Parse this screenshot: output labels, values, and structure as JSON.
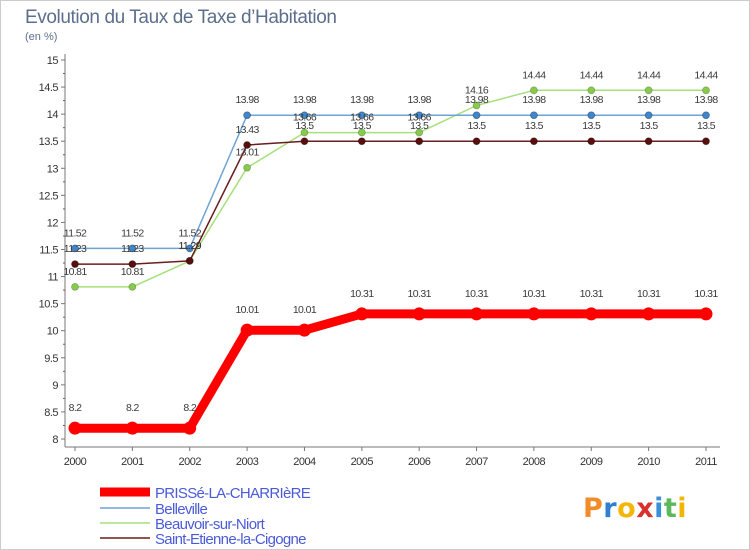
{
  "chart_data": {
    "type": "line",
    "title": "Evolution du Taux de Taxe d’Habitation",
    "subtitle": "(en %)",
    "xlabel": "",
    "ylabel": "",
    "x": [
      2000,
      2001,
      2002,
      2003,
      2004,
      2005,
      2006,
      2007,
      2008,
      2009,
      2010,
      2011
    ],
    "ylim": [
      8,
      15
    ],
    "yticks": [
      8,
      8.5,
      9,
      9.5,
      10,
      10.5,
      11,
      11.5,
      12,
      12.5,
      13,
      13.5,
      14,
      14.5,
      15
    ],
    "grid": false,
    "legend": "bottom-left",
    "series": [
      {
        "name": "PRISSé-LA-CHARRIèRE",
        "color": "#ff0000",
        "marker_color": "#ff0000",
        "values": [
          8.2,
          8.2,
          8.2,
          10.01,
          10.01,
          10.31,
          10.31,
          10.31,
          10.31,
          10.31,
          10.31,
          10.31
        ]
      },
      {
        "name": "Belleville",
        "color": "#6fa3d6",
        "marker_color": "#3f86cc",
        "values": [
          11.52,
          11.52,
          11.52,
          13.98,
          13.98,
          13.98,
          13.98,
          13.98,
          13.98,
          13.98,
          13.98,
          13.98
        ]
      },
      {
        "name": "Beauvoir-sur-Niort",
        "color": "#a6e07a",
        "marker_color": "#86cc4a",
        "values": [
          10.81,
          10.81,
          11.29,
          13.01,
          13.66,
          13.66,
          13.66,
          14.16,
          14.44,
          14.44,
          14.44,
          14.44
        ]
      },
      {
        "name": "Saint-Etienne-la-Cigogne",
        "color": "#6b1c1c",
        "marker_color": "#5a0f0f",
        "values": [
          11.23,
          11.23,
          11.29,
          13.43,
          13.5,
          13.5,
          13.5,
          13.5,
          13.5,
          13.5,
          13.5,
          13.5
        ]
      }
    ]
  },
  "logo": {
    "text": "Proxiti",
    "letter_colors": [
      "#f28c28",
      "#2f7fd1",
      "#f2b705",
      "#d9322b",
      "#3a8fd9",
      "#5cb85c",
      "#f2b705"
    ]
  }
}
